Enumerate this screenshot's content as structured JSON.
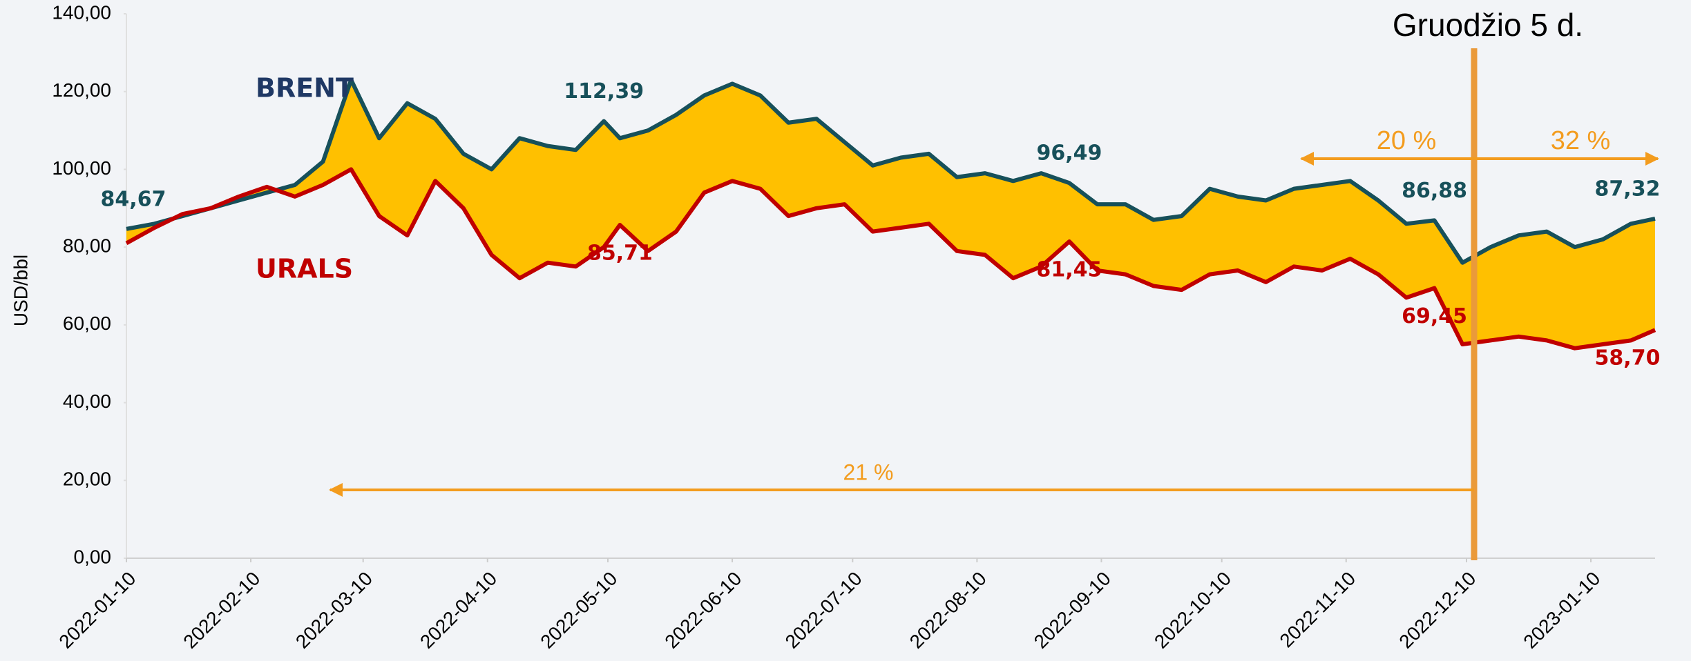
{
  "chart_data": {
    "type": "line-spread",
    "y_label": "USD/bbl",
    "annotation_date": "Gruodžio 5 d.",
    "annotations": [
      "20 %",
      "32 %",
      "21 %"
    ],
    "fill_color": "#ffc000",
    "x": [
      "2022-01-10",
      "2022-01-17",
      "2022-01-24",
      "2022-01-31",
      "2022-02-07",
      "2022-02-14",
      "2022-02-21",
      "2022-02-28",
      "2022-03-07",
      "2022-03-14",
      "2022-03-21",
      "2022-03-28",
      "2022-04-04",
      "2022-04-11",
      "2022-04-18",
      "2022-04-25",
      "2022-05-02",
      "2022-05-09",
      "2022-05-13",
      "2022-05-20",
      "2022-05-27",
      "2022-06-03",
      "2022-06-10",
      "2022-06-17",
      "2022-06-24",
      "2022-07-01",
      "2022-07-08",
      "2022-07-15",
      "2022-07-22",
      "2022-07-29",
      "2022-08-05",
      "2022-08-12",
      "2022-08-19",
      "2022-08-26",
      "2022-09-02",
      "2022-09-09",
      "2022-09-16",
      "2022-09-23",
      "2022-09-30",
      "2022-10-07",
      "2022-10-14",
      "2022-10-21",
      "2022-10-28",
      "2022-11-04",
      "2022-11-11",
      "2022-11-18",
      "2022-11-25",
      "2022-12-02",
      "2022-12-09",
      "2022-12-16",
      "2022-12-23",
      "2022-12-30",
      "2023-01-06",
      "2023-01-13",
      "2023-01-20",
      "2023-01-26"
    ],
    "series": [
      {
        "name": "BRENT",
        "color": "#17505a",
        "values": [
          84.67,
          86,
          88,
          90,
          92,
          94,
          96,
          102,
          123,
          108,
          117,
          113,
          104,
          100,
          108,
          106,
          105,
          112.39,
          108,
          110,
          114,
          119,
          122,
          119,
          112,
          113,
          107,
          101,
          103,
          104,
          98,
          99,
          97,
          99,
          96.49,
          91,
          91,
          87,
          88,
          95,
          93,
          92,
          95,
          96,
          97,
          92,
          86,
          86.88,
          76,
          80,
          83,
          84,
          80,
          82,
          86,
          87.32
        ],
        "value_labels": [
          "84,67",
          null,
          null,
          null,
          null,
          null,
          null,
          null,
          null,
          null,
          null,
          null,
          null,
          null,
          null,
          null,
          null,
          "112,39",
          null,
          null,
          null,
          null,
          null,
          null,
          null,
          null,
          null,
          null,
          null,
          null,
          null,
          null,
          null,
          null,
          "96,49",
          null,
          null,
          null,
          null,
          null,
          null,
          null,
          null,
          null,
          null,
          null,
          null,
          "86,88",
          null,
          null,
          null,
          null,
          null,
          null,
          null,
          "87,32"
        ]
      },
      {
        "name": "URALS",
        "color": "#c00000",
        "values": [
          81,
          85,
          88.5,
          90,
          93,
          95.5,
          93,
          96,
          100,
          88,
          83,
          97,
          90,
          78,
          72,
          76,
          75,
          80,
          85.71,
          79,
          84,
          94,
          97,
          95,
          88,
          90,
          91,
          84,
          85,
          86,
          79,
          78,
          72,
          75,
          81.45,
          74,
          73,
          70,
          69,
          73,
          74,
          71,
          75,
          74,
          77,
          73,
          67,
          69.45,
          55,
          56,
          57,
          56,
          54,
          55,
          56,
          58.7
        ],
        "value_labels": [
          null,
          null,
          null,
          null,
          null,
          null,
          null,
          null,
          null,
          null,
          null,
          null,
          null,
          null,
          null,
          null,
          null,
          null,
          "85,71",
          null,
          null,
          null,
          null,
          null,
          null,
          null,
          null,
          null,
          null,
          null,
          null,
          null,
          null,
          null,
          "81,45",
          null,
          null,
          null,
          null,
          null,
          null,
          null,
          null,
          null,
          null,
          null,
          null,
          "69,45",
          null,
          null,
          null,
          null,
          null,
          null,
          null,
          "58,70"
        ]
      }
    ],
    "xlim": [
      "2022-01-10",
      "2023-01-26"
    ],
    "xticks": [
      "2022-01-10",
      "2022-02-10",
      "2022-03-10",
      "2022-04-10",
      "2022-05-10",
      "2022-06-10",
      "2022-07-10",
      "2022-08-10",
      "2022-09-10",
      "2022-10-10",
      "2022-11-10",
      "2022-12-10",
      "2023-01-10"
    ],
    "ylim": [
      0,
      140
    ],
    "yticks": [
      {
        "value": 0,
        "label": "0,00"
      },
      {
        "value": 20,
        "label": "20,00"
      },
      {
        "value": 40,
        "label": "40,00"
      },
      {
        "value": 60,
        "label": "60,00"
      },
      {
        "value": 80,
        "label": "80,00"
      },
      {
        "value": 100,
        "label": "100,00"
      },
      {
        "value": 120,
        "label": "120,00"
      },
      {
        "value": 140,
        "label": "140,00"
      }
    ]
  }
}
